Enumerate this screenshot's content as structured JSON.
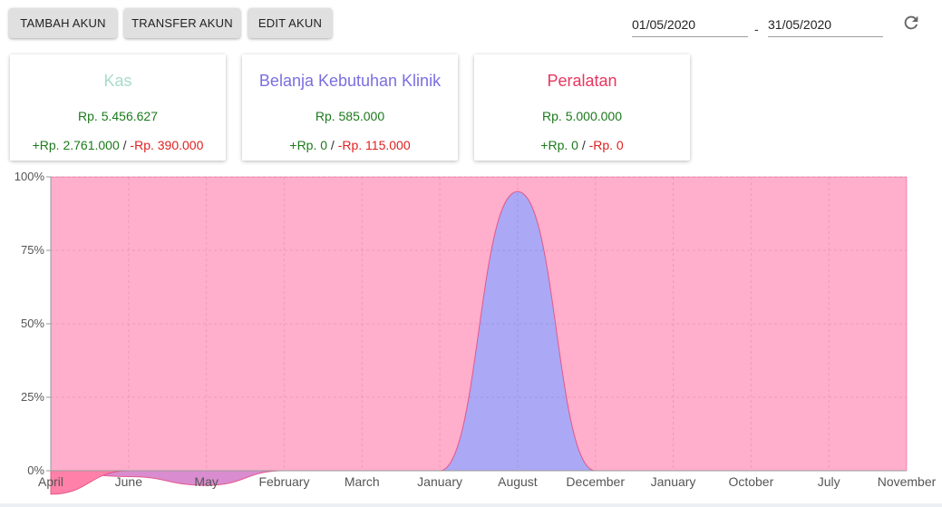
{
  "toolbar": {
    "add_label": "TAMBAH AKUN",
    "transfer_label": "TRANSFER AKUN",
    "edit_label": "EDIT AKUN"
  },
  "date_range": {
    "start": "01/05/2020",
    "separator": "-",
    "end": "31/05/2020"
  },
  "icons": {
    "refresh": "refresh-icon"
  },
  "cards": [
    {
      "title": "Kas",
      "title_color": "#a8dcc8",
      "balance": "Rp. 5.456.627",
      "income": "+Rp. 2.761.000",
      "separator": "/",
      "expense": "-Rp. 390.000"
    },
    {
      "title": "Belanja Kebutuhan Klinik",
      "title_color": "#7b6ee0",
      "balance": "Rp. 585.000",
      "income": "+Rp. 0",
      "separator": "/",
      "expense": "-Rp. 115.000"
    },
    {
      "title": "Peralatan",
      "title_color": "#e8365e",
      "balance": "Rp. 5.000.000",
      "income": "+Rp. 0",
      "separator": "/",
      "expense": "-Rp. 0"
    }
  ],
  "colors": {
    "income": "#1b7a1b",
    "expense": "#e02020"
  },
  "chart_data": {
    "type": "area",
    "stacked_percent": true,
    "categories": [
      "April",
      "June",
      "May",
      "February",
      "March",
      "January",
      "August",
      "December",
      "January",
      "October",
      "July",
      "November"
    ],
    "ylim": [
      0,
      100
    ],
    "yticks": [
      "0%",
      "25%",
      "50%",
      "75%",
      "100%"
    ],
    "grid": true,
    "series": [
      {
        "color": "#ffaecb",
        "values": [
          100,
          100,
          100,
          100,
          100,
          100,
          100,
          100,
          100,
          100,
          100,
          100
        ]
      },
      {
        "color": "#aba9f5",
        "values": [
          0,
          0,
          0,
          0,
          0,
          0,
          95,
          0,
          0,
          0,
          0,
          0
        ]
      },
      {
        "color": "#d98ccf",
        "values": [
          0,
          -2,
          -5,
          0,
          0,
          0,
          0,
          0,
          0,
          0,
          0,
          0
        ]
      },
      {
        "color": "#ff80a8",
        "values": [
          -8,
          0,
          0,
          0,
          0,
          0,
          0,
          0,
          0,
          0,
          0,
          0
        ]
      }
    ]
  }
}
